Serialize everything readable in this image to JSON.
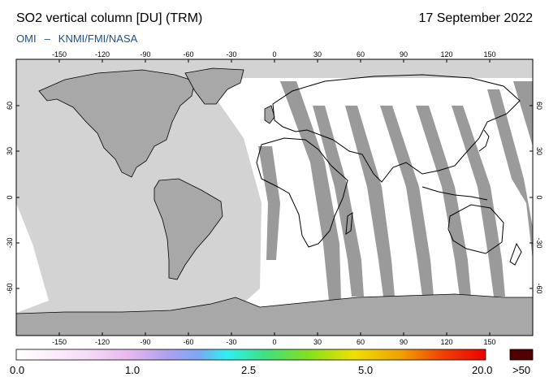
{
  "header": {
    "title": "SO2 vertical column [DU] (TRM)",
    "date": "17 September 2022",
    "credit_left": "OMI",
    "credit_sep": "–",
    "credit_right": "KNMI/FMI/NASA"
  },
  "map": {
    "lon_ticks": [
      "-150",
      "-120",
      "-90",
      "-60",
      "-30",
      "0",
      "30",
      "60",
      "90",
      "120",
      "150"
    ],
    "lat_ticks": [
      "60",
      "30",
      "0",
      "-30",
      "-60"
    ],
    "colors": {
      "no_data": "#d3d3d3",
      "land": "#a8a8a8",
      "orbit_gap": "#9a9a9a",
      "low_so2": "#ffffff",
      "coast": "#000000"
    }
  },
  "colorbar": {
    "labels": [
      "0.0",
      "1.0",
      "2.5",
      "5.0",
      "20.0",
      ">50"
    ],
    "colors": [
      "#ffffff",
      "#f2c8f0",
      "#a080f0",
      "#30e8f0",
      "#40e040",
      "#f0e000",
      "#f08000",
      "#f00000",
      "#500000"
    ]
  }
}
